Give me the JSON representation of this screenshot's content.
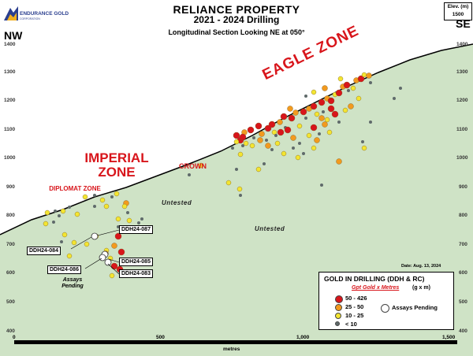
{
  "header": {
    "logo_text": "ENDURANCE GOLD",
    "logo_sub": "CORPORATION",
    "title_line1": "RELIANCE PROPERTY",
    "title_line2": "2021 - 2024 Drilling",
    "subtitle": "Longitudinal Section Looking NE at 050°"
  },
  "orientation": {
    "left": "NW",
    "right": "SE"
  },
  "elevation_box": {
    "label": "Elev. (m)",
    "value": "1500"
  },
  "y_axis_left": [
    "1400",
    "1300",
    "1200",
    "1100",
    "1000",
    "900",
    "800",
    "700",
    "600",
    "500",
    "400"
  ],
  "y_axis_right": [
    "1400",
    "1300",
    "1200",
    "1100",
    "1000",
    "900",
    "800",
    "700",
    "600",
    "500",
    "400"
  ],
  "zones": {
    "eagle": "EAGLE ZONE",
    "imperial": "IMPERIAL ZONE",
    "crown": "CROWN",
    "diplomat": "DIPLOMAT ZONE"
  },
  "untested_labels": [
    "Untested",
    "Untested"
  ],
  "holes": {
    "h087": "DDH24-087",
    "h084": "DDH24-084",
    "h086": "DDH24-086",
    "h085": "DDH24-085",
    "h083": "DDH24-083"
  },
  "assays_pending_note": "Assays Pending",
  "date": "Date:  Aug. 13, 2024",
  "legend": {
    "title": "GOLD IN DRILLING (DDH & RC)",
    "subtitle": "Gpt Gold x Metres",
    "unit": "(g x m)",
    "items": [
      {
        "label": "50 - 426",
        "color": "#d8151b",
        "size": 8
      },
      {
        "label": "25 - 50",
        "color": "#f29a1e",
        "size": 7
      },
      {
        "label": "10 - 25",
        "color": "#f3e531",
        "size": 6
      },
      {
        "label": "< 10",
        "color": "#5f6a6a",
        "size": 4
      }
    ],
    "pending": "Assays Pending"
  },
  "scale": {
    "labels": [
      "0",
      "500",
      "1,000",
      "1,500"
    ],
    "unit": "metres"
  },
  "colors": {
    "ground": "#cfe3c6",
    "high": "#d8151b",
    "mid": "#f29a1e",
    "low": "#f3e531",
    "trace": "#5f6a6a"
  }
}
